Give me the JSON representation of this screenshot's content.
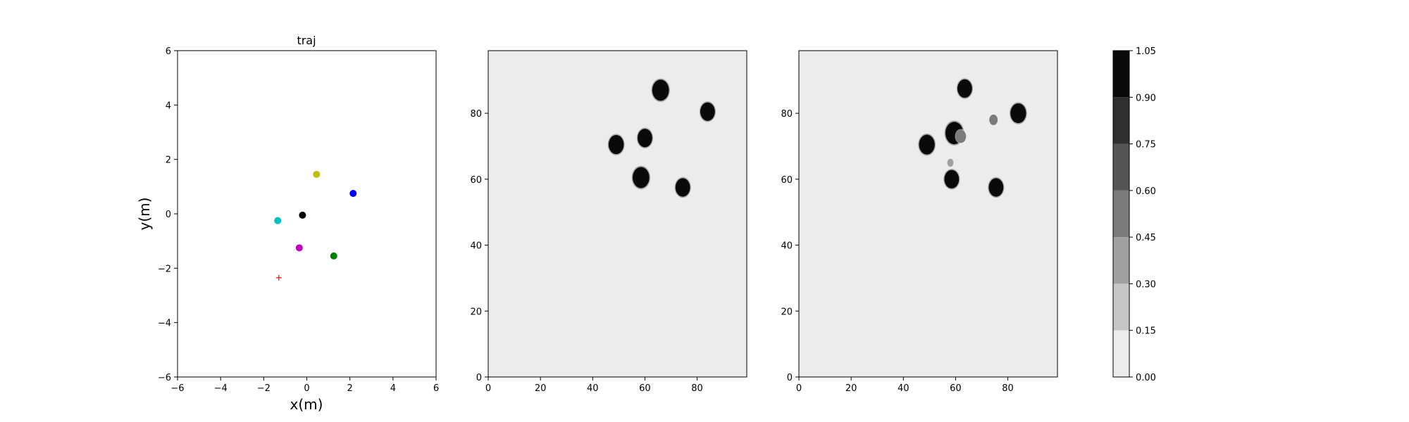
{
  "chart_data": [
    {
      "type": "scatter",
      "title": "traj",
      "xlabel": "x(m)",
      "ylabel": "y(m)",
      "xlim": [
        -6,
        6
      ],
      "ylim": [
        -6,
        6
      ],
      "xticks": [
        -6,
        -4,
        -2,
        0,
        2,
        4,
        6
      ],
      "yticks": [
        -6,
        -4,
        -2,
        0,
        2,
        4,
        6
      ],
      "grid": false,
      "points": [
        {
          "x": 0.45,
          "y": 1.45,
          "color": "#bfbf00",
          "marker": "dot"
        },
        {
          "x": 2.15,
          "y": 0.75,
          "color": "#0000ff",
          "marker": "dot"
        },
        {
          "x": -0.2,
          "y": -0.05,
          "color": "#000000",
          "marker": "dot"
        },
        {
          "x": -1.35,
          "y": -0.25,
          "color": "#00bfbf",
          "marker": "dot"
        },
        {
          "x": -0.35,
          "y": -1.25,
          "color": "#bf00bf",
          "marker": "dot"
        },
        {
          "x": 1.25,
          "y": -1.55,
          "color": "#008000",
          "marker": "dot"
        },
        {
          "x": -1.3,
          "y": -2.35,
          "color": "#ff0000",
          "marker": "plus"
        }
      ]
    },
    {
      "type": "heatmap",
      "xlim": [
        0,
        99
      ],
      "ylim": [
        0,
        99
      ],
      "xticks": [
        0,
        20,
        40,
        60,
        80
      ],
      "yticks": [
        0,
        20,
        40,
        60,
        80
      ],
      "background_level": 0.0,
      "blobs": [
        {
          "cx": 66,
          "cy": 87,
          "r": 3.2,
          "value": 1.0
        },
        {
          "cx": 84,
          "cy": 80.5,
          "r": 2.8,
          "value": 1.0
        },
        {
          "cx": 49,
          "cy": 70.5,
          "r": 2.9,
          "value": 1.0
        },
        {
          "cx": 60,
          "cy": 72.5,
          "r": 2.8,
          "value": 1.0
        },
        {
          "cx": 58.5,
          "cy": 60.5,
          "r": 3.2,
          "value": 1.0
        },
        {
          "cx": 74.5,
          "cy": 57.5,
          "r": 2.8,
          "value": 1.0
        }
      ]
    },
    {
      "type": "heatmap",
      "xlim": [
        0,
        99
      ],
      "ylim": [
        0,
        99
      ],
      "xticks": [
        0,
        20,
        40,
        60,
        80
      ],
      "yticks": [
        0,
        20,
        40,
        60,
        80
      ],
      "background_level": 0.0,
      "blobs": [
        {
          "cx": 63.5,
          "cy": 87.5,
          "r": 2.8,
          "value": 1.0
        },
        {
          "cx": 84,
          "cy": 80,
          "r": 3.0,
          "value": 1.0
        },
        {
          "cx": 49,
          "cy": 70.5,
          "r": 3.0,
          "value": 1.0
        },
        {
          "cx": 59.5,
          "cy": 74,
          "r": 3.4,
          "value": 1.0
        },
        {
          "cx": 58.5,
          "cy": 60,
          "r": 2.8,
          "value": 1.0
        },
        {
          "cx": 75.5,
          "cy": 57.5,
          "r": 2.8,
          "value": 1.0
        },
        {
          "cx": 62,
          "cy": 73,
          "r": 2.0,
          "value": 0.55
        },
        {
          "cx": 74.5,
          "cy": 78,
          "r": 1.6,
          "value": 0.55
        },
        {
          "cx": 58,
          "cy": 65,
          "r": 1.2,
          "value": 0.3
        }
      ]
    }
  ],
  "colorbar": {
    "ticks": [
      "0.00",
      "0.15",
      "0.30",
      "0.45",
      "0.60",
      "0.75",
      "0.90",
      "1.05"
    ],
    "levels": [
      {
        "from": 0.0,
        "to": 0.15,
        "color": "#ececec"
      },
      {
        "from": 0.15,
        "to": 0.3,
        "color": "#c6c6c6"
      },
      {
        "from": 0.3,
        "to": 0.45,
        "color": "#a0a0a0"
      },
      {
        "from": 0.45,
        "to": 0.6,
        "color": "#7b7b7b"
      },
      {
        "from": 0.6,
        "to": 0.75,
        "color": "#555555"
      },
      {
        "from": 0.75,
        "to": 0.9,
        "color": "#2f2f2f"
      },
      {
        "from": 0.9,
        "to": 1.05,
        "color": "#0a0a0a"
      }
    ]
  }
}
